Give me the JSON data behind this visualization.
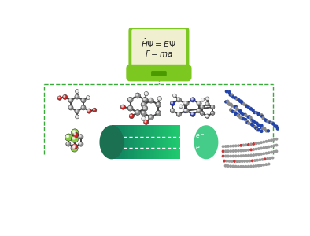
{
  "bg_color": "#ffffff",
  "laptop_screen_color": "#f0f0d0",
  "laptop_body_color": "#7dc820",
  "laptop_dark_color": "#4a9a00",
  "dashed_color": "#3aaa3a",
  "carbon_color": "#888888",
  "oxygen_color": "#cc2222",
  "hydrogen_color": "#dddddd",
  "nitrogen_color": "#2233bb",
  "chlorine_color": "#88cc44",
  "bond_color": "#444444",
  "cyl_mid": "#2ab070",
  "cyl_light": "#44cc88",
  "cyl_dark": "#1a7050",
  "poly_blue": "#2244aa",
  "poly_gray": "#888888",
  "graph_gray": "#999999",
  "graph_red": "#cc3333"
}
